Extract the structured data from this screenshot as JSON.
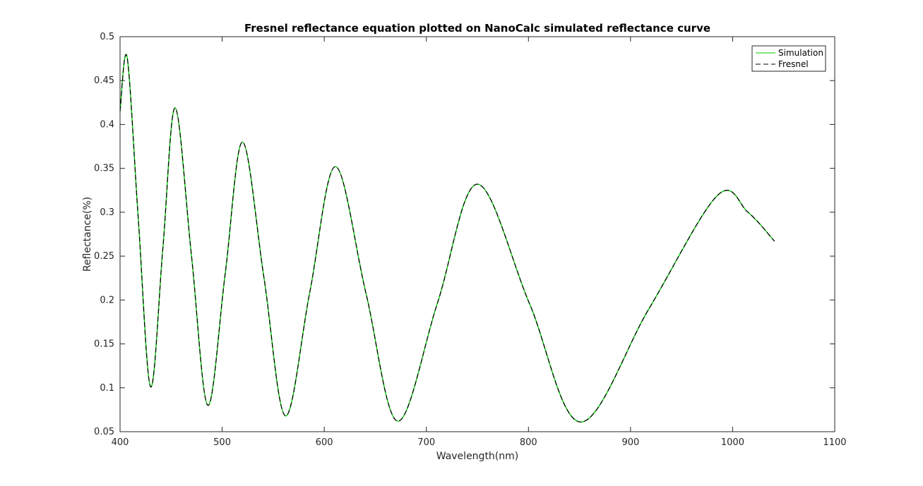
{
  "chart_data": {
    "type": "line",
    "title": "Fresnel reflectance equation plotted on NanoCalc simulated reflectance curve",
    "xlabel": "Wavelength(nm)",
    "ylabel": "Reflectance(%)",
    "xlim": [
      400,
      1100
    ],
    "ylim": [
      0.05,
      0.5
    ],
    "xticks": [
      "400",
      "500",
      "600",
      "700",
      "800",
      "900",
      "1000",
      "1100"
    ],
    "yticks": [
      "0.05",
      "0.1",
      "0.15",
      "0.2",
      "0.25",
      "0.3",
      "0.35",
      "0.4",
      "0.45",
      "0.5"
    ],
    "grid": false,
    "legend_position": "top-right",
    "series": [
      {
        "name": "Simulation",
        "color": "#00cc00",
        "style": "solid",
        "x": [
          400,
          407,
          418,
          430,
          442,
          454,
          470,
          486,
          503,
          520,
          541,
          562,
          586,
          611,
          641,
          672,
          711,
          750,
          801,
          851,
          918,
          985,
          1015,
          1041
        ],
        "y": [
          0.415,
          0.476,
          0.29,
          0.101,
          0.26,
          0.419,
          0.25,
          0.08,
          0.23,
          0.38,
          0.225,
          0.068,
          0.21,
          0.352,
          0.207,
          0.062,
          0.197,
          0.332,
          0.196,
          0.061,
          0.19,
          0.319,
          0.3,
          0.267
        ]
      },
      {
        "name": "Fresnel",
        "color": "#000000",
        "style": "dashed",
        "x": [
          400,
          407,
          418,
          430,
          442,
          454,
          470,
          486,
          503,
          520,
          541,
          562,
          586,
          611,
          641,
          672,
          711,
          750,
          801,
          851,
          918,
          985,
          1015,
          1041
        ],
        "y": [
          0.415,
          0.476,
          0.29,
          0.101,
          0.26,
          0.419,
          0.25,
          0.08,
          0.23,
          0.38,
          0.225,
          0.068,
          0.21,
          0.352,
          0.207,
          0.062,
          0.197,
          0.332,
          0.196,
          0.061,
          0.19,
          0.319,
          0.3,
          0.267
        ]
      }
    ]
  }
}
